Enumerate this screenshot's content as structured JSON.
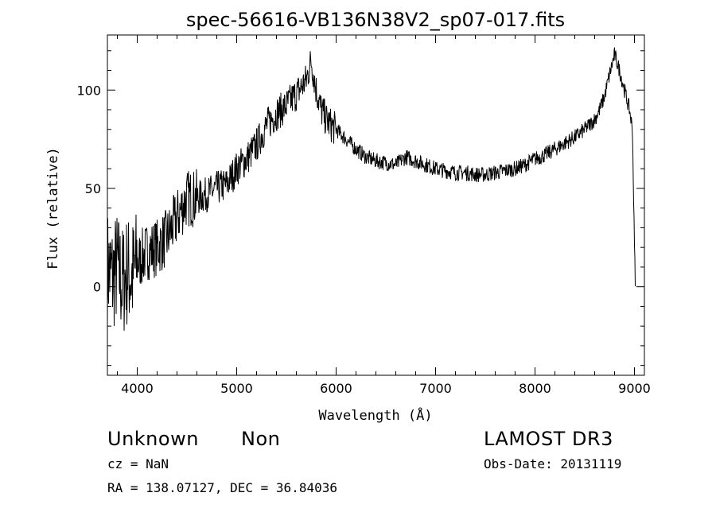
{
  "chart_data": {
    "type": "line",
    "title": "spec-56616-VB136N38V2_sp07-017.fits",
    "xlabel": "Wavelength (Å)",
    "ylabel": "Flux (relative)",
    "xlim": [
      3700,
      9100
    ],
    "ylim": [
      -45,
      128
    ],
    "xticks": [
      4000,
      5000,
      6000,
      7000,
      8000,
      9000
    ],
    "yticks": [
      0,
      50,
      100
    ],
    "grid": false,
    "series": [
      {
        "color": "#000000",
        "x": [
          3700,
          3750,
          3800,
          3850,
          3900,
          3950,
          4000,
          4100,
          4200,
          4300,
          4400,
          4500,
          4600,
          4700,
          4800,
          4900,
          5000,
          5100,
          5200,
          5300,
          5400,
          5500,
          5600,
          5700,
          5750,
          5800,
          5850,
          5900,
          5950,
          6000,
          6100,
          6200,
          6300,
          6400,
          6500,
          6600,
          6700,
          6800,
          6900,
          7000,
          7100,
          7200,
          7300,
          7400,
          7500,
          7600,
          7700,
          7800,
          7900,
          8000,
          8100,
          8200,
          8300,
          8400,
          8500,
          8600,
          8650,
          8700,
          8750,
          8800,
          8850,
          8900,
          8950,
          8980,
          9000,
          9010
        ],
        "y": [
          10,
          5,
          10,
          2,
          8,
          5,
          12,
          18,
          20,
          25,
          35,
          45,
          45,
          47,
          50,
          52,
          60,
          65,
          72,
          82,
          88,
          92,
          98,
          105,
          115,
          100,
          90,
          85,
          82,
          80,
          75,
          70,
          66,
          64,
          63,
          62,
          66,
          64,
          62,
          60,
          59,
          58,
          58,
          57,
          57,
          58,
          59,
          60,
          62,
          65,
          67,
          70,
          73,
          76,
          80,
          85,
          90,
          97,
          108,
          118,
          110,
          100,
          90,
          80,
          20,
          0
        ]
      }
    ]
  },
  "info": {
    "object_class": "Unknown",
    "subclass": "Non",
    "survey": "LAMOST DR3",
    "redshift": "cz = NaN",
    "obs_date": "Obs-Date: 20131119",
    "coords": "RA = 138.07127, DEC =  36.84036"
  }
}
